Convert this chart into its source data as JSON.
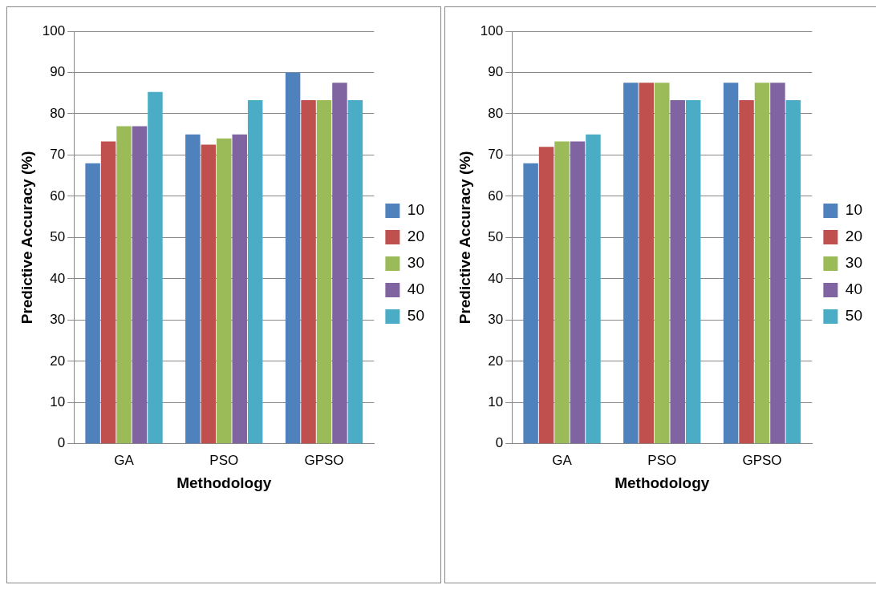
{
  "chart_data": [
    {
      "type": "bar",
      "xlabel": "Methodology",
      "ylabel": "Predictive Accuracy (%)",
      "categories": [
        "GA",
        "PSO",
        "GPSO"
      ],
      "series": [
        {
          "name": "10",
          "color": "#4f81bd",
          "values": [
            68,
            75,
            90
          ]
        },
        {
          "name": "20",
          "color": "#c0504d",
          "values": [
            73.3,
            72.5,
            83.3
          ]
        },
        {
          "name": "30",
          "color": "#9bbb59",
          "values": [
            77,
            74,
            83.3
          ]
        },
        {
          "name": "40",
          "color": "#8064a2",
          "values": [
            77,
            75,
            87.5
          ]
        },
        {
          "name": "50",
          "color": "#4bacc6",
          "values": [
            85.3,
            83.3,
            83.3
          ]
        }
      ],
      "ylim": [
        0,
        100
      ],
      "yticks": [
        0,
        10,
        20,
        30,
        40,
        50,
        60,
        70,
        80,
        90,
        100
      ],
      "grid": "y",
      "legend": "right"
    },
    {
      "type": "bar",
      "xlabel": "Methodology",
      "ylabel": "Predictive Accuracy (%)",
      "categories": [
        "GA",
        "PSO",
        "GPSO"
      ],
      "series": [
        {
          "name": "10",
          "color": "#4f81bd",
          "values": [
            68,
            87.5,
            87.5
          ]
        },
        {
          "name": "20",
          "color": "#c0504d",
          "values": [
            72,
            87.5,
            83.3
          ]
        },
        {
          "name": "30",
          "color": "#9bbb59",
          "values": [
            73.3,
            87.5,
            87.5
          ]
        },
        {
          "name": "40",
          "color": "#8064a2",
          "values": [
            73.3,
            83.3,
            87.5
          ]
        },
        {
          "name": "50",
          "color": "#4bacc6",
          "values": [
            75,
            83.3,
            83.3
          ]
        }
      ],
      "ylim": [
        0,
        100
      ],
      "yticks": [
        0,
        10,
        20,
        30,
        40,
        50,
        60,
        70,
        80,
        90,
        100
      ],
      "grid": "y",
      "legend": "right"
    }
  ]
}
